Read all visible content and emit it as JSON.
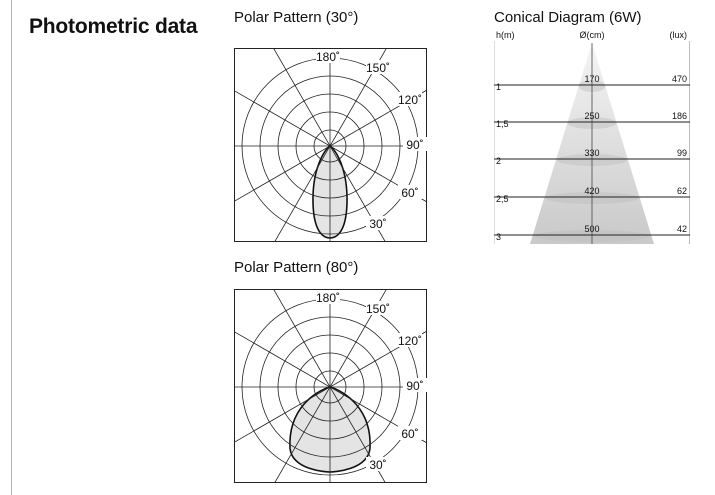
{
  "section": {
    "title": "Photometric data"
  },
  "polar_30": {
    "title": "Polar Pattern (30°)",
    "angle_labels": [
      "180˚",
      "150˚",
      "120˚",
      "90˚",
      "60˚",
      "30˚"
    ],
    "beam_angle_deg": 30
  },
  "polar_80": {
    "title": "Polar Pattern (80°)",
    "angle_labels": [
      "180˚",
      "150˚",
      "120˚",
      "90˚",
      "60˚",
      "30˚"
    ],
    "beam_angle_deg": 80
  },
  "conical": {
    "title": "Conical Diagram (6W)",
    "header": {
      "h": "h(m)",
      "d": "Ø(cm)",
      "lux": "(lux)"
    },
    "rows": [
      {
        "h": "1",
        "d": "170",
        "lux": "470"
      },
      {
        "h": "1,5",
        "d": "250",
        "lux": "186"
      },
      {
        "h": "2",
        "d": "330",
        "lux": "99"
      },
      {
        "h": "2,5",
        "d": "420",
        "lux": "62"
      },
      {
        "h": "3",
        "d": "500",
        "lux": "42"
      }
    ]
  }
}
